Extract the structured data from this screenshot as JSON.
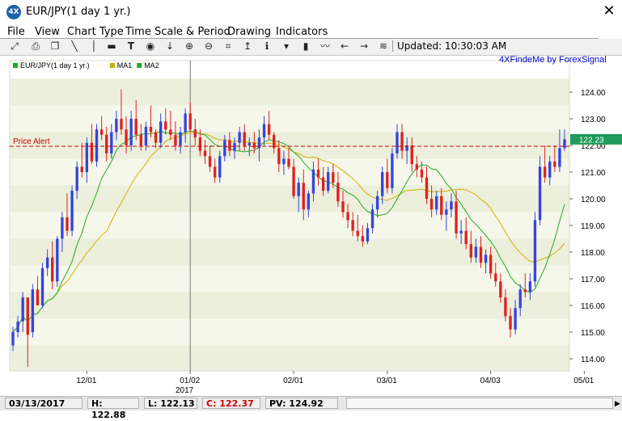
{
  "window": {
    "title": "EUR/JPY(1 day  1 yr.)",
    "icon_text": "4X",
    "close": "✕"
  },
  "menu": [
    {
      "label": "File"
    },
    {
      "label": "View"
    },
    {
      "label": "Chart Type"
    },
    {
      "label": "Time Scale & Period"
    },
    {
      "label": "Drawing"
    },
    {
      "label": "Indicators"
    }
  ],
  "toolbar": {
    "updated": "Updated: 10:30:03 AM",
    "icons": [
      "expand-icon",
      "print-icon",
      "copy-icon",
      "trendline-icon",
      "vertical-line-icon",
      "horizontal-line-icon",
      "text-icon",
      "price-alert-icon",
      "down-arrow-icon",
      "zoom-in-icon",
      "zoom-out-icon",
      "fit-icon",
      "scale-icon",
      "info-icon",
      "marker-icon",
      "bar-chart-icon",
      "sparkline-icon",
      "scroll-left-icon",
      "scroll-right-icon",
      "settings-icon"
    ]
  },
  "chart": {
    "brand": "4XFindeMe by ForexSignal",
    "legend": [
      {
        "name": "EUR/JPY(1 day  1 yr.)",
        "color": "#22aa22"
      },
      {
        "name": "MA1",
        "color": "#ccaa00"
      },
      {
        "name": "MA2",
        "color": "#22aa22"
      }
    ],
    "price_alert_label": "Price Alert",
    "price_alert_value": 121.97,
    "current_price_label": "122.23",
    "current_price": 122.23,
    "year_label": "2017",
    "colors": {
      "up": "#3344dd",
      "down": "#dd2222",
      "ma1": "#d4b000",
      "ma2": "#22aa22",
      "alert": "#cc0000",
      "band_light": "#f5f7ea",
      "band_dark": "#ebefdc",
      "current_tag": "#1e9a5a"
    }
  },
  "chart_data": {
    "type": "candlestick",
    "y_ticks": [
      "124.00",
      "123.00",
      "122.00",
      "121.00",
      "120.00",
      "119.00",
      "118.00",
      "117.00",
      "116.00",
      "115.00",
      "114.00"
    ],
    "ylim": [
      113.6,
      124.6
    ],
    "x_ticks": [
      {
        "label": "12/01",
        "index": 15
      },
      {
        "label": "01/02",
        "index": 36
      },
      {
        "label": "02/01",
        "index": 57
      },
      {
        "label": "03/01",
        "index": 76
      },
      {
        "label": "04/03",
        "index": 97
      },
      {
        "label": "05/01",
        "index": 116
      }
    ],
    "year_divider_index": 36,
    "candles": [
      [
        114.5,
        115.2,
        114.3,
        115.0
      ],
      [
        115.0,
        115.6,
        114.8,
        115.4
      ],
      [
        115.4,
        116.5,
        115.0,
        116.3
      ],
      [
        116.3,
        116.2,
        113.7,
        114.9
      ],
      [
        115.0,
        116.8,
        114.8,
        116.6
      ],
      [
        116.6,
        117.1,
        116.1,
        116.0
      ],
      [
        116.0,
        117.6,
        115.9,
        117.4
      ],
      [
        117.4,
        118.1,
        117.1,
        117.8
      ],
      [
        117.8,
        118.4,
        116.6,
        116.9
      ],
      [
        116.9,
        118.6,
        116.7,
        118.5
      ],
      [
        118.5,
        119.5,
        118.0,
        119.3
      ],
      [
        119.3,
        120.2,
        118.6,
        118.8
      ],
      [
        118.8,
        120.5,
        118.6,
        120.3
      ],
      [
        120.3,
        121.4,
        120.0,
        121.2
      ],
      [
        121.2,
        122.1,
        120.8,
        121.0
      ],
      [
        121.0,
        122.3,
        120.6,
        122.1
      ],
      [
        122.1,
        122.8,
        121.3,
        121.4
      ],
      [
        121.4,
        122.8,
        121.2,
        122.6
      ],
      [
        122.6,
        123.1,
        122.2,
        122.4
      ],
      [
        122.4,
        122.7,
        121.4,
        121.7
      ],
      [
        121.7,
        122.8,
        121.5,
        122.5
      ],
      [
        122.5,
        123.3,
        122.2,
        123.0
      ],
      [
        123.0,
        124.1,
        122.4,
        122.6
      ],
      [
        122.6,
        123.1,
        121.7,
        122.0
      ],
      [
        122.0,
        123.3,
        121.8,
        123.0
      ],
      [
        123.0,
        123.7,
        122.2,
        122.4
      ],
      [
        122.4,
        122.8,
        121.8,
        122.0
      ],
      [
        122.0,
        122.9,
        121.8,
        122.7
      ],
      [
        122.7,
        123.5,
        122.3,
        122.5
      ],
      [
        122.5,
        122.6,
        121.9,
        122.1
      ],
      [
        122.1,
        123.2,
        121.9,
        122.9
      ],
      [
        122.9,
        123.4,
        122.4,
        122.6
      ],
      [
        122.6,
        123.3,
        122.2,
        122.4
      ],
      [
        122.4,
        122.9,
        121.8,
        122.0
      ],
      [
        122.0,
        122.7,
        121.7,
        122.5
      ],
      [
        122.5,
        123.4,
        122.1,
        123.2
      ],
      [
        123.2,
        123.6,
        122.5,
        122.6
      ],
      [
        122.6,
        123.0,
        122.0,
        122.3
      ],
      [
        122.3,
        122.6,
        121.6,
        121.8
      ],
      [
        121.8,
        122.2,
        121.3,
        121.6
      ],
      [
        121.6,
        122.0,
        121.0,
        121.2
      ],
      [
        121.2,
        121.5,
        120.6,
        120.8
      ],
      [
        120.8,
        121.8,
        120.6,
        121.6
      ],
      [
        121.6,
        122.4,
        121.4,
        122.2
      ],
      [
        122.2,
        122.5,
        121.6,
        121.8
      ],
      [
        121.8,
        122.3,
        121.5,
        122.1
      ],
      [
        122.1,
        122.7,
        121.8,
        122.5
      ],
      [
        122.5,
        122.8,
        121.8,
        122.0
      ],
      [
        122.0,
        122.3,
        121.6,
        122.1
      ],
      [
        122.1,
        122.5,
        121.7,
        121.9
      ],
      [
        121.9,
        122.6,
        121.4,
        122.3
      ],
      [
        122.3,
        123.1,
        122.0,
        122.8
      ],
      [
        122.8,
        123.3,
        122.2,
        122.4
      ],
      [
        122.4,
        122.5,
        121.7,
        121.9
      ],
      [
        121.9,
        122.2,
        121.0,
        121.3
      ],
      [
        121.3,
        121.8,
        120.9,
        121.5
      ],
      [
        121.5,
        121.9,
        121.1,
        121.2
      ],
      [
        121.2,
        121.5,
        120.0,
        120.1
      ],
      [
        120.1,
        120.8,
        119.5,
        120.6
      ],
      [
        120.6,
        121.1,
        119.2,
        119.6
      ],
      [
        119.6,
        120.3,
        119.3,
        120.2
      ],
      [
        120.2,
        121.4,
        119.9,
        121.1
      ],
      [
        121.1,
        121.5,
        120.5,
        120.8
      ],
      [
        120.8,
        121.2,
        120.1,
        120.3
      ],
      [
        120.3,
        121.2,
        120.2,
        121.0
      ],
      [
        121.0,
        121.3,
        120.4,
        120.6
      ],
      [
        120.6,
        121.0,
        119.7,
        119.9
      ],
      [
        119.9,
        120.3,
        119.3,
        119.5
      ],
      [
        119.5,
        119.8,
        118.9,
        119.2
      ],
      [
        119.2,
        119.5,
        118.6,
        118.8
      ],
      [
        118.8,
        119.4,
        118.4,
        118.6
      ],
      [
        118.6,
        119.0,
        118.2,
        118.4
      ],
      [
        118.4,
        119.1,
        118.3,
        118.9
      ],
      [
        118.9,
        119.8,
        118.7,
        119.6
      ],
      [
        119.6,
        120.3,
        119.3,
        120.1
      ],
      [
        120.1,
        121.2,
        119.8,
        121.0
      ],
      [
        121.0,
        121.5,
        120.2,
        120.4
      ],
      [
        120.4,
        121.9,
        120.2,
        121.7
      ],
      [
        121.7,
        122.8,
        121.5,
        122.5
      ],
      [
        122.5,
        122.8,
        121.5,
        121.8
      ],
      [
        121.8,
        122.3,
        121.3,
        122.0
      ],
      [
        122.0,
        122.3,
        121.0,
        121.3
      ],
      [
        121.3,
        121.6,
        120.8,
        121.1
      ],
      [
        121.1,
        121.4,
        120.6,
        120.8
      ],
      [
        120.8,
        121.2,
        119.8,
        120.0
      ],
      [
        120.0,
        120.5,
        119.3,
        119.6
      ],
      [
        119.6,
        120.3,
        119.4,
        120.1
      ],
      [
        120.1,
        120.4,
        119.2,
        119.4
      ],
      [
        119.4,
        119.9,
        118.8,
        119.6
      ],
      [
        119.6,
        120.2,
        119.3,
        119.9
      ],
      [
        119.9,
        120.3,
        118.5,
        118.7
      ],
      [
        118.7,
        119.2,
        118.3,
        118.8
      ],
      [
        118.8,
        119.3,
        118.1,
        118.3
      ],
      [
        118.3,
        118.8,
        117.6,
        117.8
      ],
      [
        117.8,
        118.5,
        117.6,
        118.2
      ],
      [
        118.2,
        118.6,
        117.4,
        117.6
      ],
      [
        117.6,
        118.1,
        117.2,
        117.9
      ],
      [
        117.9,
        118.2,
        117.0,
        117.2
      ],
      [
        117.2,
        117.6,
        116.7,
        116.9
      ],
      [
        116.9,
        117.2,
        116.1,
        116.3
      ],
      [
        116.3,
        116.6,
        115.4,
        115.6
      ],
      [
        115.6,
        115.9,
        114.8,
        115.1
      ],
      [
        115.1,
        116.2,
        114.9,
        115.9
      ],
      [
        115.9,
        116.8,
        115.6,
        116.6
      ],
      [
        116.6,
        117.2,
        116.3,
        116.5
      ],
      [
        116.5,
        117.2,
        116.2,
        116.9
      ],
      [
        116.9,
        119.5,
        116.7,
        119.2
      ],
      [
        119.2,
        121.6,
        119.0,
        121.2
      ],
      [
        121.2,
        122.0,
        120.6,
        120.8
      ],
      [
        120.8,
        121.6,
        120.5,
        121.4
      ],
      [
        121.4,
        122.0,
        121.0,
        121.2
      ],
      [
        121.2,
        122.6,
        121.0,
        121.9
      ],
      [
        121.9,
        122.6,
        121.8,
        122.23
      ]
    ]
  },
  "status": {
    "date": "03/13/2017",
    "high": "H: 122.88",
    "low": "L: 122.13",
    "close": "C: 122.37",
    "pv": "PV: 124.92"
  }
}
